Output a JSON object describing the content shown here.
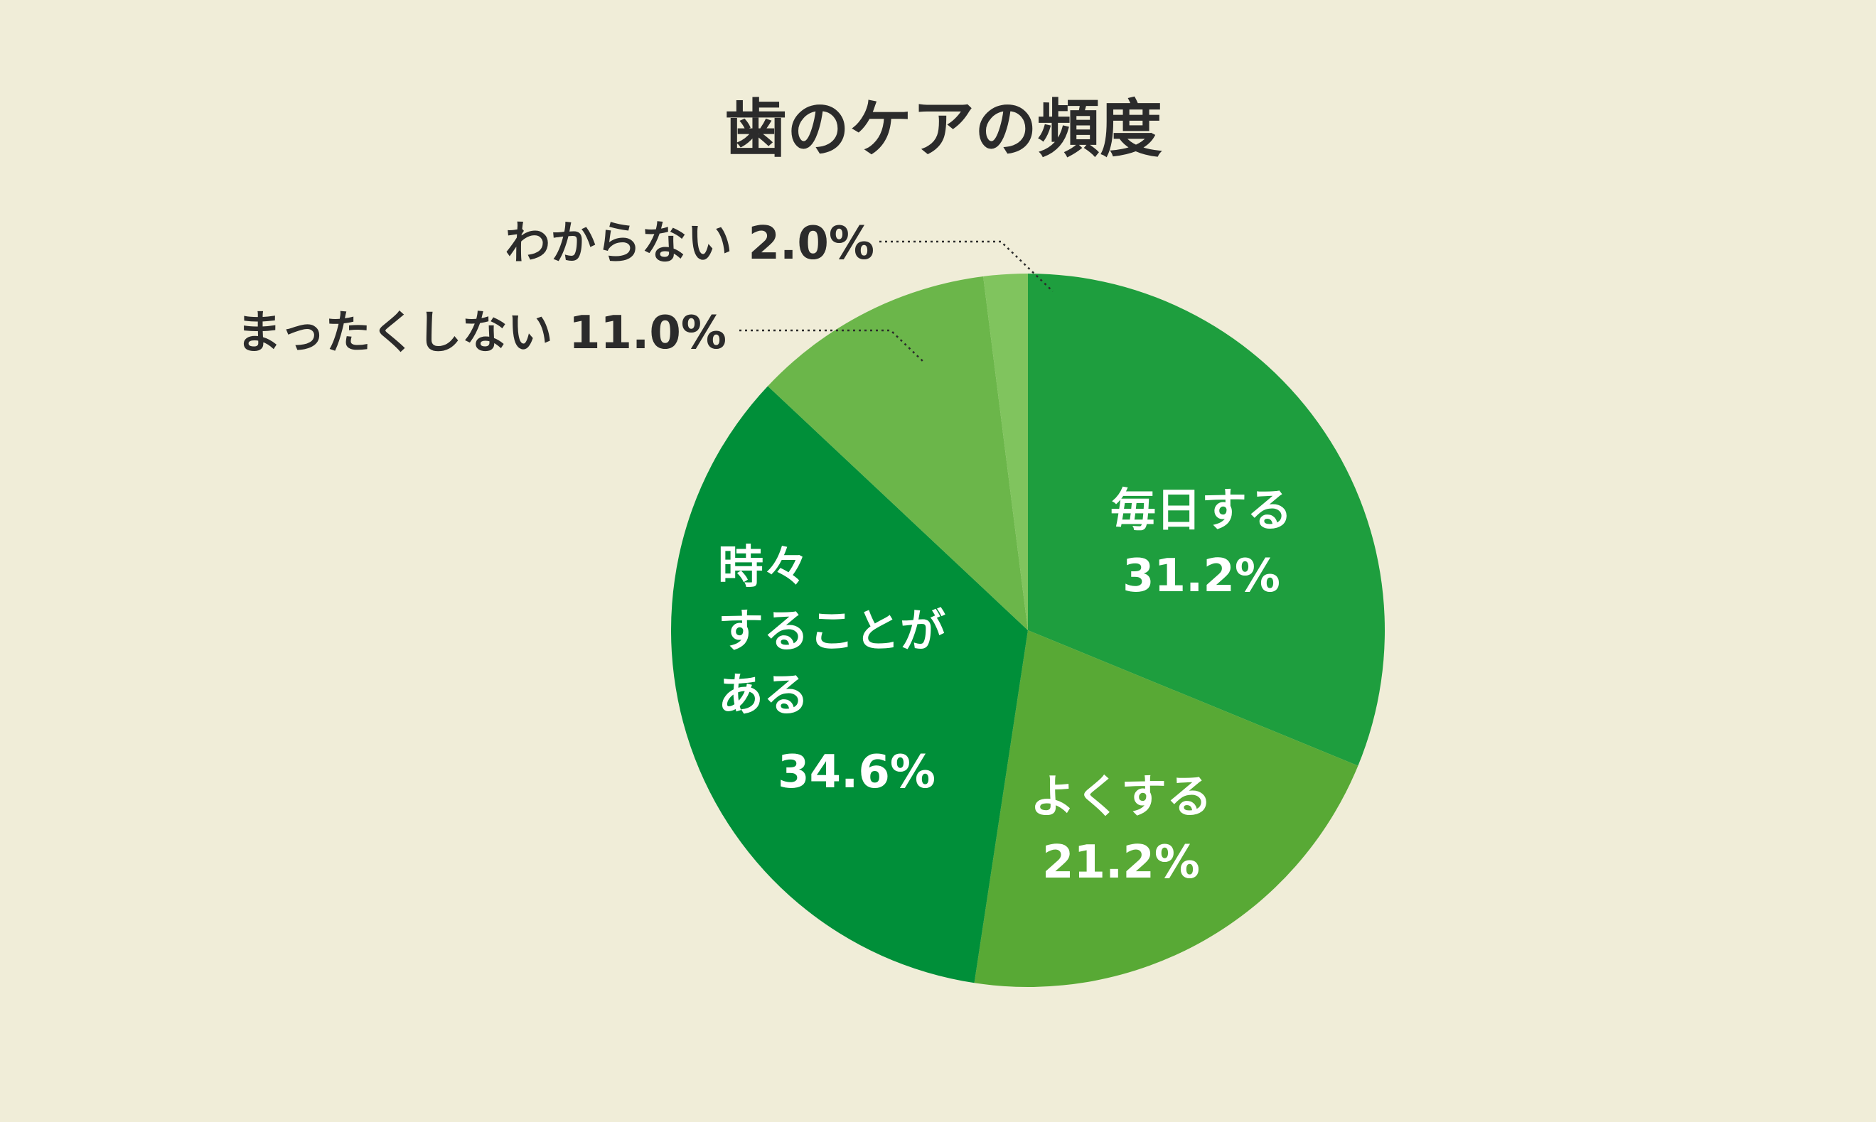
{
  "chart_data": {
    "type": "pie",
    "title": "歯のケアの頻度",
    "start_angle_deg": 0,
    "direction": "clockwise",
    "slices": [
      {
        "label": "毎日する",
        "label_lines": [
          "毎日する"
        ],
        "value": 31.2,
        "value_text": "31.2%",
        "color": "#1E9E3E",
        "label_position": "inside"
      },
      {
        "label": "よくする",
        "label_lines": [
          "よくする"
        ],
        "value": 21.2,
        "value_text": "21.2%",
        "color": "#58A935",
        "label_position": "inside"
      },
      {
        "label": "時々することがある",
        "label_lines": [
          "時々",
          "することが",
          "ある"
        ],
        "value": 34.6,
        "value_text": "34.6%",
        "color": "#008F39",
        "label_position": "inside"
      },
      {
        "label": "まったくしない",
        "label_lines": [
          "まったくしない"
        ],
        "value": 11.0,
        "value_text": "11.0%",
        "color": "#6BB64A",
        "label_position": "outside"
      },
      {
        "label": "わからない",
        "label_lines": [
          "わからない"
        ],
        "value": 2.0,
        "value_text": "2.0%",
        "color": "#80C45E",
        "label_position": "outside"
      }
    ],
    "legend": "none",
    "background_color": "#F0EDD8",
    "text_color": "#2B2B2B"
  }
}
